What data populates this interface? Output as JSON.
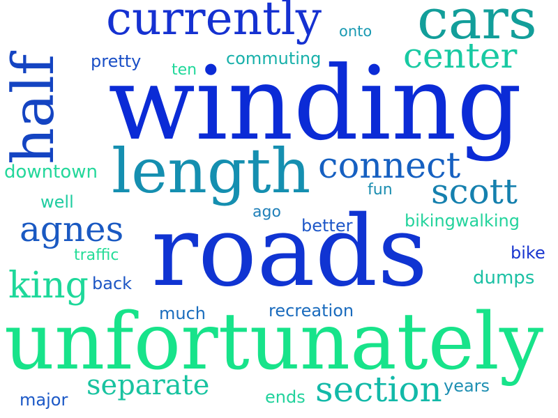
{
  "words": [
    {
      "id": "winding",
      "text": "winding",
      "color": "#0b2bd6"
    },
    {
      "id": "roads",
      "text": "roads",
      "color": "#1034d2"
    },
    {
      "id": "unfortunately",
      "text": "unfortunately",
      "color": "#17e38a"
    },
    {
      "id": "half",
      "text": "half",
      "color": "#1444c2"
    },
    {
      "id": "cars",
      "text": "cars",
      "color": "#129e9a"
    },
    {
      "id": "currently",
      "text": "currently",
      "color": "#1531d1"
    },
    {
      "id": "length",
      "text": "length",
      "color": "#158fb0"
    },
    {
      "id": "connect",
      "text": "connect",
      "color": "#1660c1"
    },
    {
      "id": "center",
      "text": "center",
      "color": "#18c9a2"
    },
    {
      "id": "scott",
      "text": "scott",
      "color": "#1580ae"
    },
    {
      "id": "agnes",
      "text": "agnes",
      "color": "#1a59c2"
    },
    {
      "id": "king",
      "text": "king",
      "color": "#1ed89a"
    },
    {
      "id": "separate",
      "text": "separate",
      "color": "#19c3a0"
    },
    {
      "id": "section",
      "text": "section",
      "color": "#12b9a8"
    },
    {
      "id": "pretty",
      "text": "pretty",
      "color": "#1a4fc6"
    },
    {
      "id": "ten",
      "text": "ten",
      "color": "#1fd89a"
    },
    {
      "id": "commuting",
      "text": "commuting",
      "color": "#18b0aa"
    },
    {
      "id": "onto",
      "text": "onto",
      "color": "#1a9ab2"
    },
    {
      "id": "downtown",
      "text": "downtown",
      "color": "#23d79a"
    },
    {
      "id": "well",
      "text": "well",
      "color": "#1fcca0"
    },
    {
      "id": "fun",
      "text": "fun",
      "color": "#1a8db0"
    },
    {
      "id": "ago",
      "text": "ago",
      "color": "#1f7fb8"
    },
    {
      "id": "better",
      "text": "better",
      "color": "#1e57c8"
    },
    {
      "id": "bikingwalking",
      "text": "bikingwalking",
      "color": "#23d39c"
    },
    {
      "id": "traffic",
      "text": "traffic",
      "color": "#25dc98"
    },
    {
      "id": "bike",
      "text": "bike",
      "color": "#1936cf"
    },
    {
      "id": "back",
      "text": "back",
      "color": "#1c56c4"
    },
    {
      "id": "dumps",
      "text": "dumps",
      "color": "#1bc0a4"
    },
    {
      "id": "much",
      "text": "much",
      "color": "#1a6dbd"
    },
    {
      "id": "recreation",
      "text": "recreation",
      "color": "#1a6bbd"
    },
    {
      "id": "major",
      "text": "major",
      "color": "#1b58c6"
    },
    {
      "id": "ends",
      "text": "ends",
      "color": "#22d29c"
    },
    {
      "id": "years",
      "text": "years",
      "color": "#1e8fb2"
    }
  ]
}
